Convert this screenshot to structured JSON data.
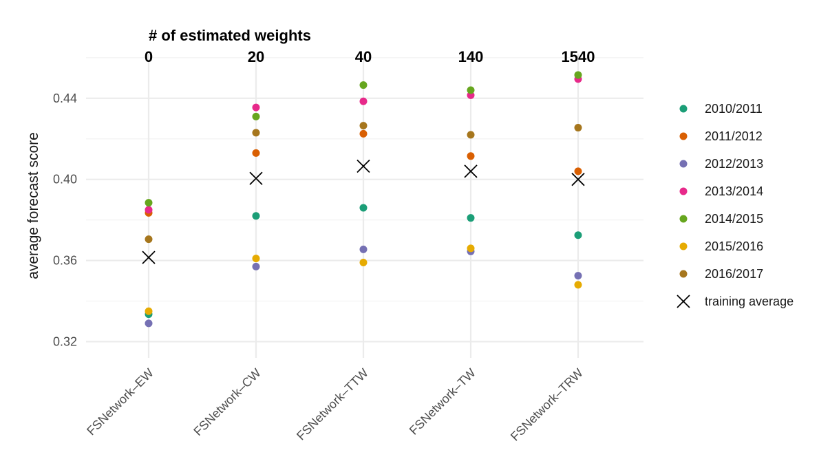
{
  "chart_data": {
    "type": "scatter",
    "top_axis_title": "# of estimated weights",
    "ylabel": "average forecast score",
    "xlabel": "",
    "ylim": [
      0.312,
      0.462
    ],
    "y_ticks": [
      0.32,
      0.36,
      0.4,
      0.44
    ],
    "y_tick_labels": [
      "0.32",
      "0.36",
      "0.40",
      "0.44"
    ],
    "grid": true,
    "legend_position": "right",
    "categories": [
      "FSNetwork–EW",
      "FSNetwork–CW",
      "FSNetwork–TTW",
      "FSNetwork–TW",
      "FSNetwork–TRW"
    ],
    "estimated_weights": [
      "0",
      "20",
      "40",
      "140",
      "1540"
    ],
    "series": [
      {
        "name": "2010/2011",
        "color": "#1b9e77",
        "values": [
          0.3335,
          0.382,
          0.386,
          0.381,
          0.3725
        ]
      },
      {
        "name": "2011/2012",
        "color": "#d95f02",
        "values": [
          0.3835,
          0.413,
          0.4225,
          0.4115,
          0.404
        ]
      },
      {
        "name": "2012/2013",
        "color": "#7570b3",
        "values": [
          0.329,
          0.357,
          0.3655,
          0.3645,
          0.3525
        ]
      },
      {
        "name": "2013/2014",
        "color": "#e7298a",
        "values": [
          0.385,
          0.4355,
          0.4385,
          0.4415,
          0.4495
        ]
      },
      {
        "name": "2014/2015",
        "color": "#66a61e",
        "values": [
          0.3885,
          0.431,
          0.4465,
          0.444,
          0.4515
        ]
      },
      {
        "name": "2015/2016",
        "color": "#e6ab02",
        "values": [
          0.335,
          0.361,
          0.359,
          0.366,
          0.348
        ]
      },
      {
        "name": "2016/2017",
        "color": "#a6761d",
        "values": [
          0.3705,
          0.423,
          0.4265,
          0.422,
          0.4255
        ]
      }
    ],
    "training_average": {
      "name": "training average",
      "color": "#000000",
      "values": [
        0.3615,
        0.4005,
        0.4065,
        0.404,
        0.4
      ]
    }
  }
}
